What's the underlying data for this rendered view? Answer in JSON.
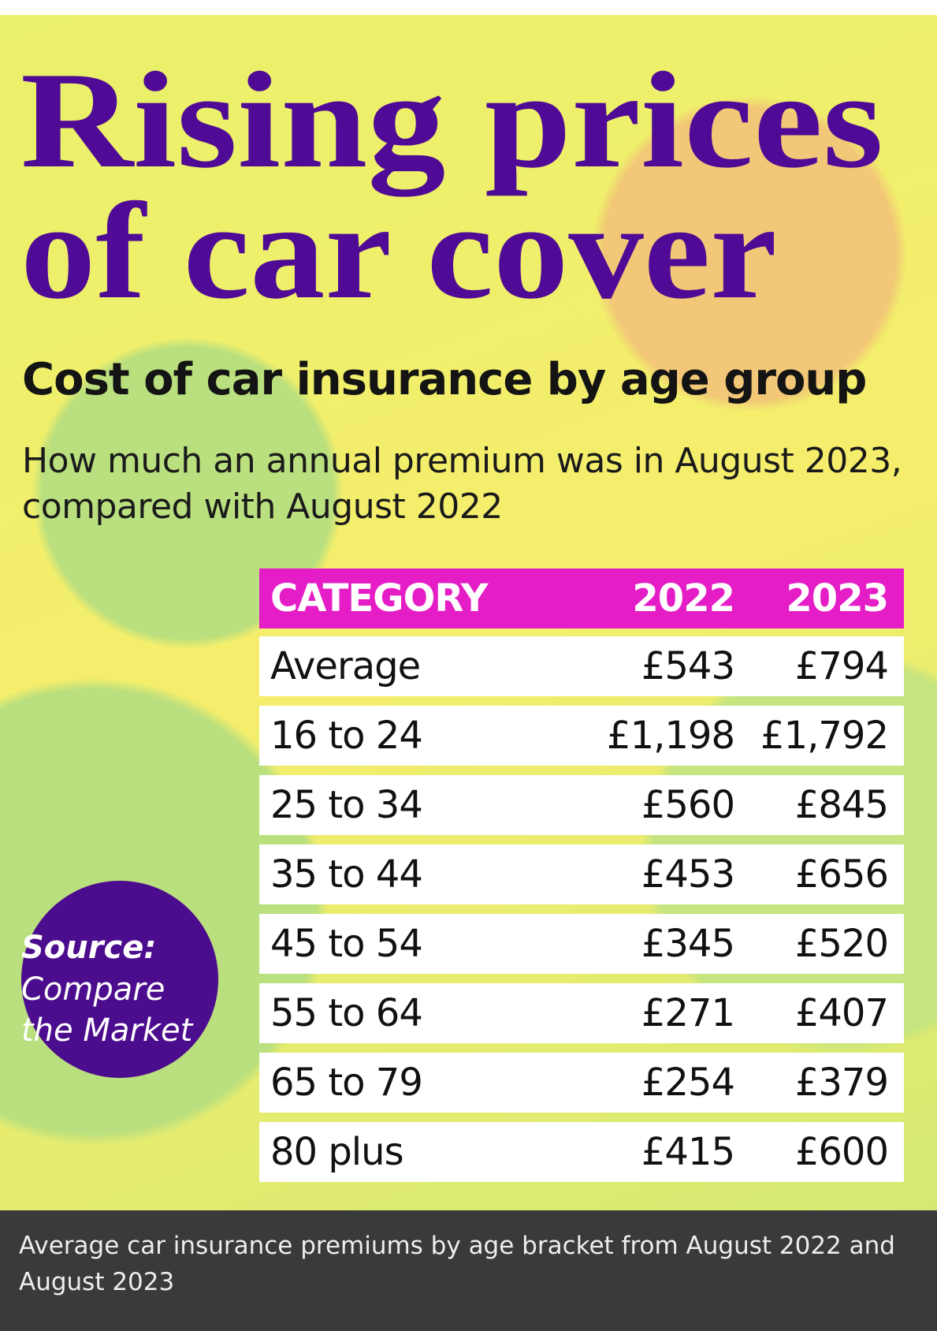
{
  "header": {
    "title_lines": [
      "Rising prices",
      "of car cover"
    ],
    "subtitle": "Cost of car insurance by age group",
    "description": "How much an annual premium was in August 2023, compared with August 2022"
  },
  "table": {
    "columns": [
      "CATEGORY",
      "2022",
      "2023"
    ],
    "rows": [
      [
        "Average",
        "£543",
        "£794"
      ],
      [
        "16 to 24",
        "£1,198",
        "£1,792"
      ],
      [
        "25 to 34",
        "£560",
        "£845"
      ],
      [
        "35 to 44",
        "£453",
        "£656"
      ],
      [
        "45 to 54",
        "£345",
        "£520"
      ],
      [
        "55 to 64",
        "£271",
        "£407"
      ],
      [
        "65 to 79",
        "£254",
        "£379"
      ],
      [
        "80 plus",
        "£415",
        "£600"
      ]
    ]
  },
  "source": {
    "label": "Source:",
    "name": "Compare the Market"
  },
  "caption": "Average car insurance premiums by age bracket from August 2022 and August 2023"
}
